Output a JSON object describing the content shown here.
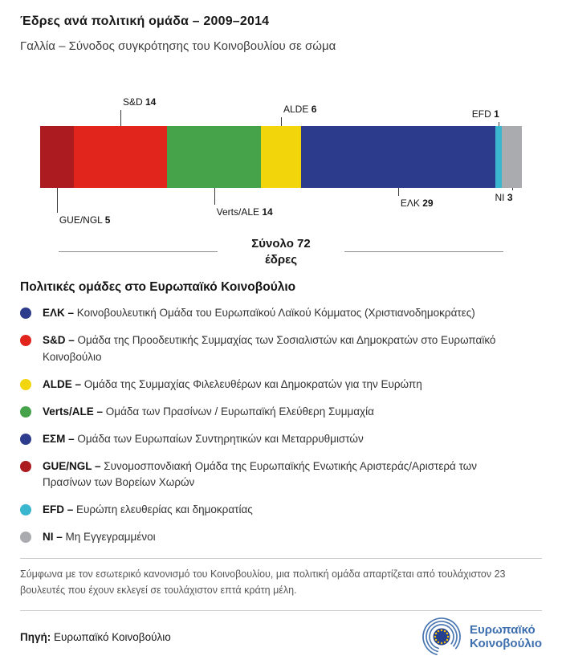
{
  "header": {
    "title": "Έδρες ανά πολιτική ομάδα – 2009–2014",
    "subtitle": "Γαλλία – Σύνοδος συγκρότησης του Κοινοβουλίου σε σώμα"
  },
  "chart_data": {
    "type": "bar",
    "variant": "horizontal-stacked",
    "title": "Έδρες ανά πολιτική ομάδα – 2009–2014",
    "subtitle": "Γαλλία – Σύνοδος συγκρότησης του Κοινοβουλίου σε σώμα",
    "total": 72,
    "total_line1": "Σύνολο 72",
    "total_line2": "έδρες",
    "categories": [
      "GUE/NGL",
      "S&D",
      "Verts/ALE",
      "ALDE",
      "ΕΛΚ",
      "EFD",
      "NI"
    ],
    "values": [
      5,
      14,
      14,
      6,
      29,
      1,
      3
    ],
    "segments": [
      {
        "group": "GUE/NGL",
        "seats": 5,
        "color": "#ab1b20",
        "callout": {
          "side": "below",
          "len": 31,
          "align": "left"
        }
      },
      {
        "group": "S&D",
        "seats": 14,
        "color": "#e1251d",
        "callout": {
          "side": "above",
          "len": 20,
          "align": "left"
        }
      },
      {
        "group": "Verts/ALE",
        "seats": 14,
        "color": "#46a349",
        "callout": {
          "side": "below",
          "len": 21,
          "align": "left"
        }
      },
      {
        "group": "ALDE",
        "seats": 6,
        "color": "#f2d50b",
        "callout": {
          "side": "above",
          "len": 11,
          "align": "left"
        }
      },
      {
        "group": "ΕΛΚ",
        "seats": 29,
        "color": "#2d3b8d",
        "callout": {
          "side": "below",
          "len": 10,
          "align": "left"
        }
      },
      {
        "group": "EFD",
        "seats": 1,
        "color": "#3ab6ce",
        "callout": {
          "side": "above",
          "len": 5,
          "align": "right"
        }
      },
      {
        "group": "NI",
        "seats": 3,
        "color": "#a9abae",
        "callout": {
          "side": "below",
          "len": 3,
          "align": "right"
        }
      }
    ]
  },
  "legend": {
    "heading": "Πολιτικές ομάδες στο Ευρωπαϊκό Κοινοβούλιο",
    "items": [
      {
        "abbr": "ΕΛΚ –",
        "desc": "Κοινοβουλευτική Ομάδα του Ευρωπαϊκού Λαϊκού Κόμματος (Χριστιανοδημοκράτες)",
        "color": "#2d3b8d"
      },
      {
        "abbr": "S&D –",
        "desc": "Ομάδα της Προοδευτικής Συμμαχίας των Σοσιαλιστών και Δημοκρατών στο Ευρωπαϊκό Κοινοβούλιο",
        "color": "#e1251d"
      },
      {
        "abbr": "ALDE –",
        "desc": "Ομάδα της Συμμαχίας Φιλελευθέρων και Δημοκρατών για την Ευρώπη",
        "color": "#f2d50b"
      },
      {
        "abbr": "Verts/ALE –",
        "desc": "Ομάδα των Πρασίνων / Ευρωπαϊκή Ελεύθερη Συμμαχία",
        "color": "#46a349"
      },
      {
        "abbr": "ΕΣΜ –",
        "desc": "Ομάδα των Ευρωπαίων Συντηρητικών και Μεταρρυθμιστών",
        "color": "#2d3b8d"
      },
      {
        "abbr": "GUE/NGL –",
        "desc": "Συνομοσπονδιακή Ομάδα της Ευρωπαϊκής Ενωτικής Αριστεράς/Αριστερά των Πρασίνων των Βορείων Χωρών",
        "color": "#ab1b20"
      },
      {
        "abbr": "EFD –",
        "desc": "Ευρώπη ελευθερίας και δημοκρατίας",
        "color": "#3ab6ce"
      },
      {
        "abbr": "NI –",
        "desc": "Μη Εγγεγραμμένοι",
        "color": "#a9abae"
      }
    ]
  },
  "footer": {
    "note": "Σύμφωνα με τον εσωτερικό κανονισμό του Κοινοβουλίου, μια πολιτική ομάδα απαρτίζεται από τουλάχιστον 23 βουλευτές που έχουν εκλεγεί σε τουλάχιστον επτά κράτη μέλη.",
    "source_label": "Πηγή:",
    "source_text": "Ευρωπαϊκό Κοινοβούλιο",
    "logo_line1": "Ευρωπαϊκό",
    "logo_line2": "Κοινοβούλιο"
  }
}
